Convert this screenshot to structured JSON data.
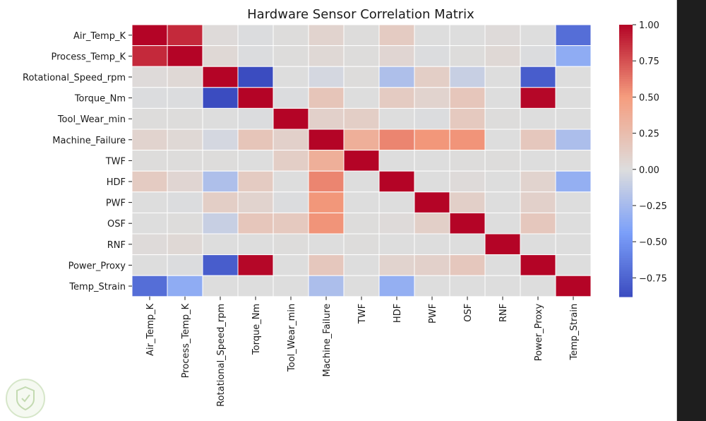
{
  "chart_data": {
    "type": "heatmap",
    "title": "Hardware Sensor Correlation Matrix",
    "xlabel": "",
    "ylabel": "",
    "labels": [
      "Air_Temp_K",
      "Process_Temp_K",
      "Rotational_Speed_rpm",
      "Torque_Nm",
      "Tool_Wear_min",
      "Machine_Failure",
      "TWF",
      "HDF",
      "PWF",
      "OSF",
      "RNF",
      "Power_Proxy",
      "Temp_Strain"
    ],
    "matrix": [
      [
        1.0,
        0.88,
        0.02,
        -0.01,
        0.01,
        0.08,
        0.01,
        0.14,
        0.0,
        0.0,
        0.02,
        0.0,
        -0.7
      ],
      [
        0.88,
        1.0,
        0.04,
        -0.01,
        0.01,
        0.04,
        0.01,
        0.06,
        -0.01,
        0.01,
        0.04,
        -0.01,
        -0.35
      ],
      [
        0.02,
        0.04,
        1.0,
        -0.88,
        0.0,
        -0.04,
        0.01,
        -0.21,
        0.12,
        -0.1,
        0.0,
        -0.79,
        0.0
      ],
      [
        -0.01,
        -0.01,
        -0.88,
        1.0,
        -0.01,
        0.19,
        0.0,
        0.14,
        0.08,
        0.18,
        0.0,
        0.99,
        0.0
      ],
      [
        0.01,
        0.01,
        0.0,
        -0.01,
        1.0,
        0.1,
        0.12,
        0.0,
        -0.01,
        0.16,
        0.01,
        0.0,
        0.0
      ],
      [
        0.08,
        0.04,
        -0.04,
        0.19,
        0.1,
        1.0,
        0.36,
        0.58,
        0.52,
        0.53,
        0.0,
        0.17,
        -0.22
      ],
      [
        0.01,
        0.01,
        0.01,
        0.0,
        0.12,
        0.36,
        1.0,
        0.0,
        0.0,
        0.01,
        0.01,
        0.0,
        0.0
      ],
      [
        0.14,
        0.06,
        -0.21,
        0.14,
        0.0,
        0.58,
        0.0,
        1.0,
        0.0,
        0.02,
        0.0,
        0.08,
        -0.33
      ],
      [
        0.0,
        -0.01,
        0.12,
        0.08,
        -0.01,
        0.52,
        0.0,
        0.0,
        1.0,
        0.11,
        0.0,
        0.1,
        0.0
      ],
      [
        0.0,
        0.01,
        -0.1,
        0.18,
        0.16,
        0.53,
        0.01,
        0.02,
        0.11,
        1.0,
        0.0,
        0.17,
        0.0
      ],
      [
        0.02,
        0.04,
        0.0,
        0.0,
        0.01,
        0.0,
        0.01,
        0.0,
        0.0,
        0.0,
        1.0,
        0.0,
        0.0
      ],
      [
        0.0,
        -0.01,
        -0.79,
        0.99,
        0.0,
        0.17,
        0.0,
        0.08,
        0.1,
        0.17,
        0.0,
        1.0,
        0.0
      ],
      [
        -0.7,
        -0.35,
        0.0,
        0.0,
        0.0,
        -0.22,
        0.0,
        -0.33,
        0.0,
        0.0,
        0.0,
        0.0,
        1.0
      ]
    ],
    "colorbar": {
      "ticks": [
        "1.00",
        "0.75",
        "0.50",
        "0.25",
        "0.00",
        "−0.25",
        "−0.50",
        "−0.75"
      ],
      "tick_values": [
        1.0,
        0.75,
        0.5,
        0.25,
        0.0,
        -0.25,
        -0.5,
        -0.75
      ],
      "vmin": -0.88,
      "vmax": 1.0,
      "colormap": "coolwarm"
    },
    "colors": {
      "cold": "#3b4cc0",
      "neutral": "#dddddd",
      "hot": "#b40426"
    },
    "grid_lines": true
  }
}
